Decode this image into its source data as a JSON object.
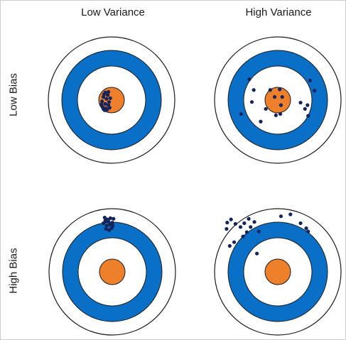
{
  "labels": {
    "low_variance": "Low Variance",
    "high_variance": "High Variance",
    "low_bias": "Low Bias",
    "high_bias": "High Bias"
  },
  "colors": {
    "ring_blue": "#0a6fc6",
    "bullseye_orange": "#ee7f2b",
    "ring_stroke": "#1c1c1c",
    "dot_fill": "#14245c",
    "background": "#ffffff"
  },
  "targets": [
    {
      "id": "low-bias-low-variance",
      "row": "low_bias",
      "column": "low_variance",
      "points": [
        [
          -0.1,
          -0.12
        ],
        [
          -0.13,
          -0.05
        ],
        [
          -0.08,
          -0.02
        ],
        [
          -0.15,
          0.02
        ],
        [
          -0.1,
          0.06
        ],
        [
          -0.05,
          0.08
        ],
        [
          -0.14,
          0.11
        ],
        [
          -0.09,
          0.13
        ],
        [
          -0.04,
          0.03
        ],
        [
          -0.12,
          -0.09
        ],
        [
          -0.06,
          -0.08
        ],
        [
          -0.16,
          0.07
        ],
        [
          -0.03,
          0.12
        ],
        [
          -0.11,
          0.16
        ],
        [
          -0.07,
          0.15
        ],
        [
          -0.02,
          -0.03
        ],
        [
          -0.13,
          0.14
        ],
        [
          -0.05,
          -0.13
        ]
      ]
    },
    {
      "id": "low-bias-high-variance",
      "row": "low_bias",
      "column": "high_variance",
      "points": [
        [
          -0.45,
          -0.33
        ],
        [
          -0.38,
          -0.16
        ],
        [
          -0.58,
          0.22
        ],
        [
          -0.41,
          0.03
        ],
        [
          -0.27,
          0.34
        ],
        [
          -0.12,
          -0.16
        ],
        [
          -0.05,
          -0.05
        ],
        [
          0.03,
          -0.17
        ],
        [
          0.07,
          -0.05
        ],
        [
          0.05,
          0.08
        ],
        [
          -0.19,
          0.14
        ],
        [
          -0.03,
          0.24
        ],
        [
          0.04,
          0.22
        ],
        [
          0.36,
          0.04
        ],
        [
          0.43,
          0.14
        ],
        [
          0.47,
          0.08
        ],
        [
          0.51,
          -0.31
        ],
        [
          0.58,
          -0.15
        ],
        [
          0.48,
          0.25
        ]
      ]
    },
    {
      "id": "high-bias-low-variance",
      "row": "high_bias",
      "column": "low_variance",
      "points": [
        [
          -0.12,
          -0.86
        ],
        [
          -0.08,
          -0.83
        ],
        [
          -0.03,
          -0.85
        ],
        [
          0.02,
          -0.84
        ],
        [
          -0.14,
          -0.77
        ],
        [
          -0.09,
          -0.73
        ],
        [
          -0.04,
          -0.75
        ],
        [
          0.01,
          -0.73
        ],
        [
          -0.1,
          -0.68
        ],
        [
          -0.05,
          -0.66
        ],
        [
          -0.01,
          -0.69
        ],
        [
          0.0,
          -0.78
        ],
        [
          -0.06,
          -0.8
        ],
        [
          -0.11,
          -0.81
        ]
      ]
    },
    {
      "id": "high-bias-high-variance",
      "row": "high_bias",
      "column": "high_variance",
      "points": [
        [
          -0.74,
          -0.83
        ],
        [
          -0.8,
          -0.78
        ],
        [
          -0.67,
          -0.76
        ],
        [
          -0.81,
          -0.68
        ],
        [
          -0.59,
          -0.71
        ],
        [
          -0.53,
          -0.77
        ],
        [
          -0.46,
          -0.84
        ],
        [
          -0.37,
          -0.79
        ],
        [
          -0.43,
          -0.71
        ],
        [
          -0.49,
          -0.63
        ],
        [
          -0.3,
          -0.64
        ],
        [
          -0.55,
          -0.56
        ],
        [
          -0.69,
          -0.47
        ],
        [
          -0.76,
          -0.41
        ],
        [
          -0.33,
          -0.29
        ],
        [
          0.05,
          -0.88
        ],
        [
          0.2,
          -0.91
        ],
        [
          0.36,
          -0.77
        ],
        [
          0.45,
          -0.69
        ],
        [
          0.48,
          -0.64
        ]
      ]
    }
  ]
}
